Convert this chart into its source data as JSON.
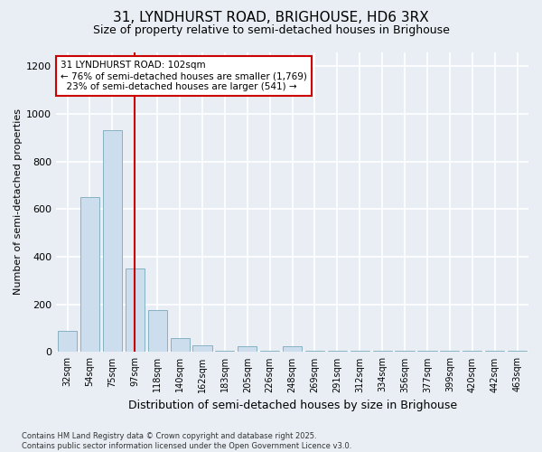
{
  "title": "31, LYNDHURST ROAD, BRIGHOUSE, HD6 3RX",
  "subtitle": "Size of property relative to semi-detached houses in Brighouse",
  "xlabel": "Distribution of semi-detached houses by size in Brighouse",
  "ylabel": "Number of semi-detached properties",
  "categories": [
    "32sqm",
    "54sqm",
    "75sqm",
    "97sqm",
    "118sqm",
    "140sqm",
    "162sqm",
    "183sqm",
    "205sqm",
    "226sqm",
    "248sqm",
    "269sqm",
    "291sqm",
    "312sqm",
    "334sqm",
    "356sqm",
    "377sqm",
    "399sqm",
    "420sqm",
    "442sqm",
    "463sqm"
  ],
  "values": [
    90,
    650,
    930,
    350,
    175,
    60,
    30,
    5,
    25,
    5,
    25,
    5,
    5,
    5,
    5,
    5,
    5,
    5,
    5,
    5,
    5
  ],
  "bar_color": "#ccdded",
  "bar_edge_color": "#7aaabb",
  "vline_x_index": 3,
  "vline_color": "#cc0000",
  "annotation_line1": "31 LYNDHURST ROAD: 102sqm",
  "annotation_line2": "← 76% of semi-detached houses are smaller (1,769)",
  "annotation_line3": "  23% of semi-detached houses are larger (541) →",
  "annotation_box_facecolor": "#ffffff",
  "annotation_box_edgecolor": "#cc0000",
  "ylim": [
    0,
    1260
  ],
  "yticks": [
    0,
    200,
    400,
    600,
    800,
    1000,
    1200
  ],
  "footnote_line1": "Contains HM Land Registry data © Crown copyright and database right 2025.",
  "footnote_line2": "Contains public sector information licensed under the Open Government Licence v3.0.",
  "fig_bg_color": "#e8eef4",
  "plot_bg_color": "#e8eef4",
  "grid_color": "#ffffff",
  "title_fontsize": 11,
  "subtitle_fontsize": 9,
  "ylabel_fontsize": 8,
  "xlabel_fontsize": 9,
  "tick_fontsize": 7,
  "annotation_fontsize": 7.5,
  "footnote_fontsize": 6
}
